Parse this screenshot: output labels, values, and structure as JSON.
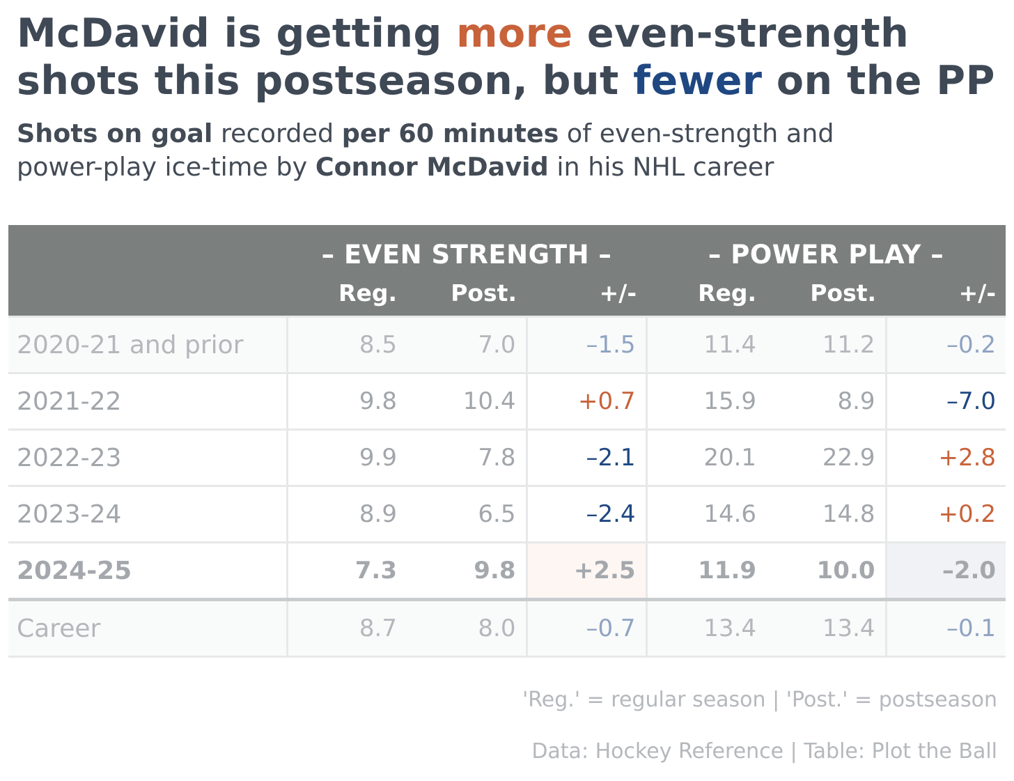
{
  "title": {
    "part1": "McDavid is getting ",
    "more": "more",
    "part2": " even-strength",
    "part3": "shots this postseason, but ",
    "fewer": "fewer",
    "part4": " on the PP"
  },
  "subtitle": {
    "b1": "Shots on goal",
    "t1": " recorded ",
    "b2": "per 60 minutes",
    "t2": " of even-strength and",
    "t3": "power-play ice-time by ",
    "b3": "Connor McDavid",
    "t4": " in his NHL career"
  },
  "colors": {
    "header_bg": "#7b7f7d",
    "positive": "#c8623a",
    "negative": "#1f4781",
    "muted_negative": "#8ea3c2",
    "text_grey": "#a2a6ab"
  },
  "chart_data": {
    "type": "table",
    "groups": [
      "– EVEN STRENGTH –",
      "– POWER PLAY –"
    ],
    "columns": [
      "Reg.",
      "Post.",
      "+/-",
      "Reg.",
      "Post.",
      "+/-"
    ],
    "rows": [
      {
        "label": "2020-21 and prior",
        "values": [
          "8.5",
          "7.0",
          "–1.5",
          "11.4",
          "11.2",
          "–0.2"
        ]
      },
      {
        "label": "2021-22",
        "values": [
          "9.8",
          "10.4",
          "+0.7",
          "15.9",
          "8.9",
          "–7.0"
        ]
      },
      {
        "label": "2022-23",
        "values": [
          "9.9",
          "7.8",
          "–2.1",
          "20.1",
          "22.9",
          "+2.8"
        ]
      },
      {
        "label": "2023-24",
        "values": [
          "8.9",
          "6.5",
          "–2.4",
          "14.6",
          "14.8",
          "+0.2"
        ]
      },
      {
        "label": "2024-25",
        "values": [
          "7.3",
          "9.8",
          "+2.5",
          "11.9",
          "10.0",
          "–2.0"
        ]
      },
      {
        "label": "Career",
        "values": [
          "8.7",
          "8.0",
          "–0.7",
          "13.4",
          "13.4",
          "–0.1"
        ]
      }
    ]
  },
  "notes": {
    "legend": "'Reg.' = regular season | 'Post.' = postseason",
    "source": "Data: Hockey Reference | Table: Plot the Ball"
  }
}
